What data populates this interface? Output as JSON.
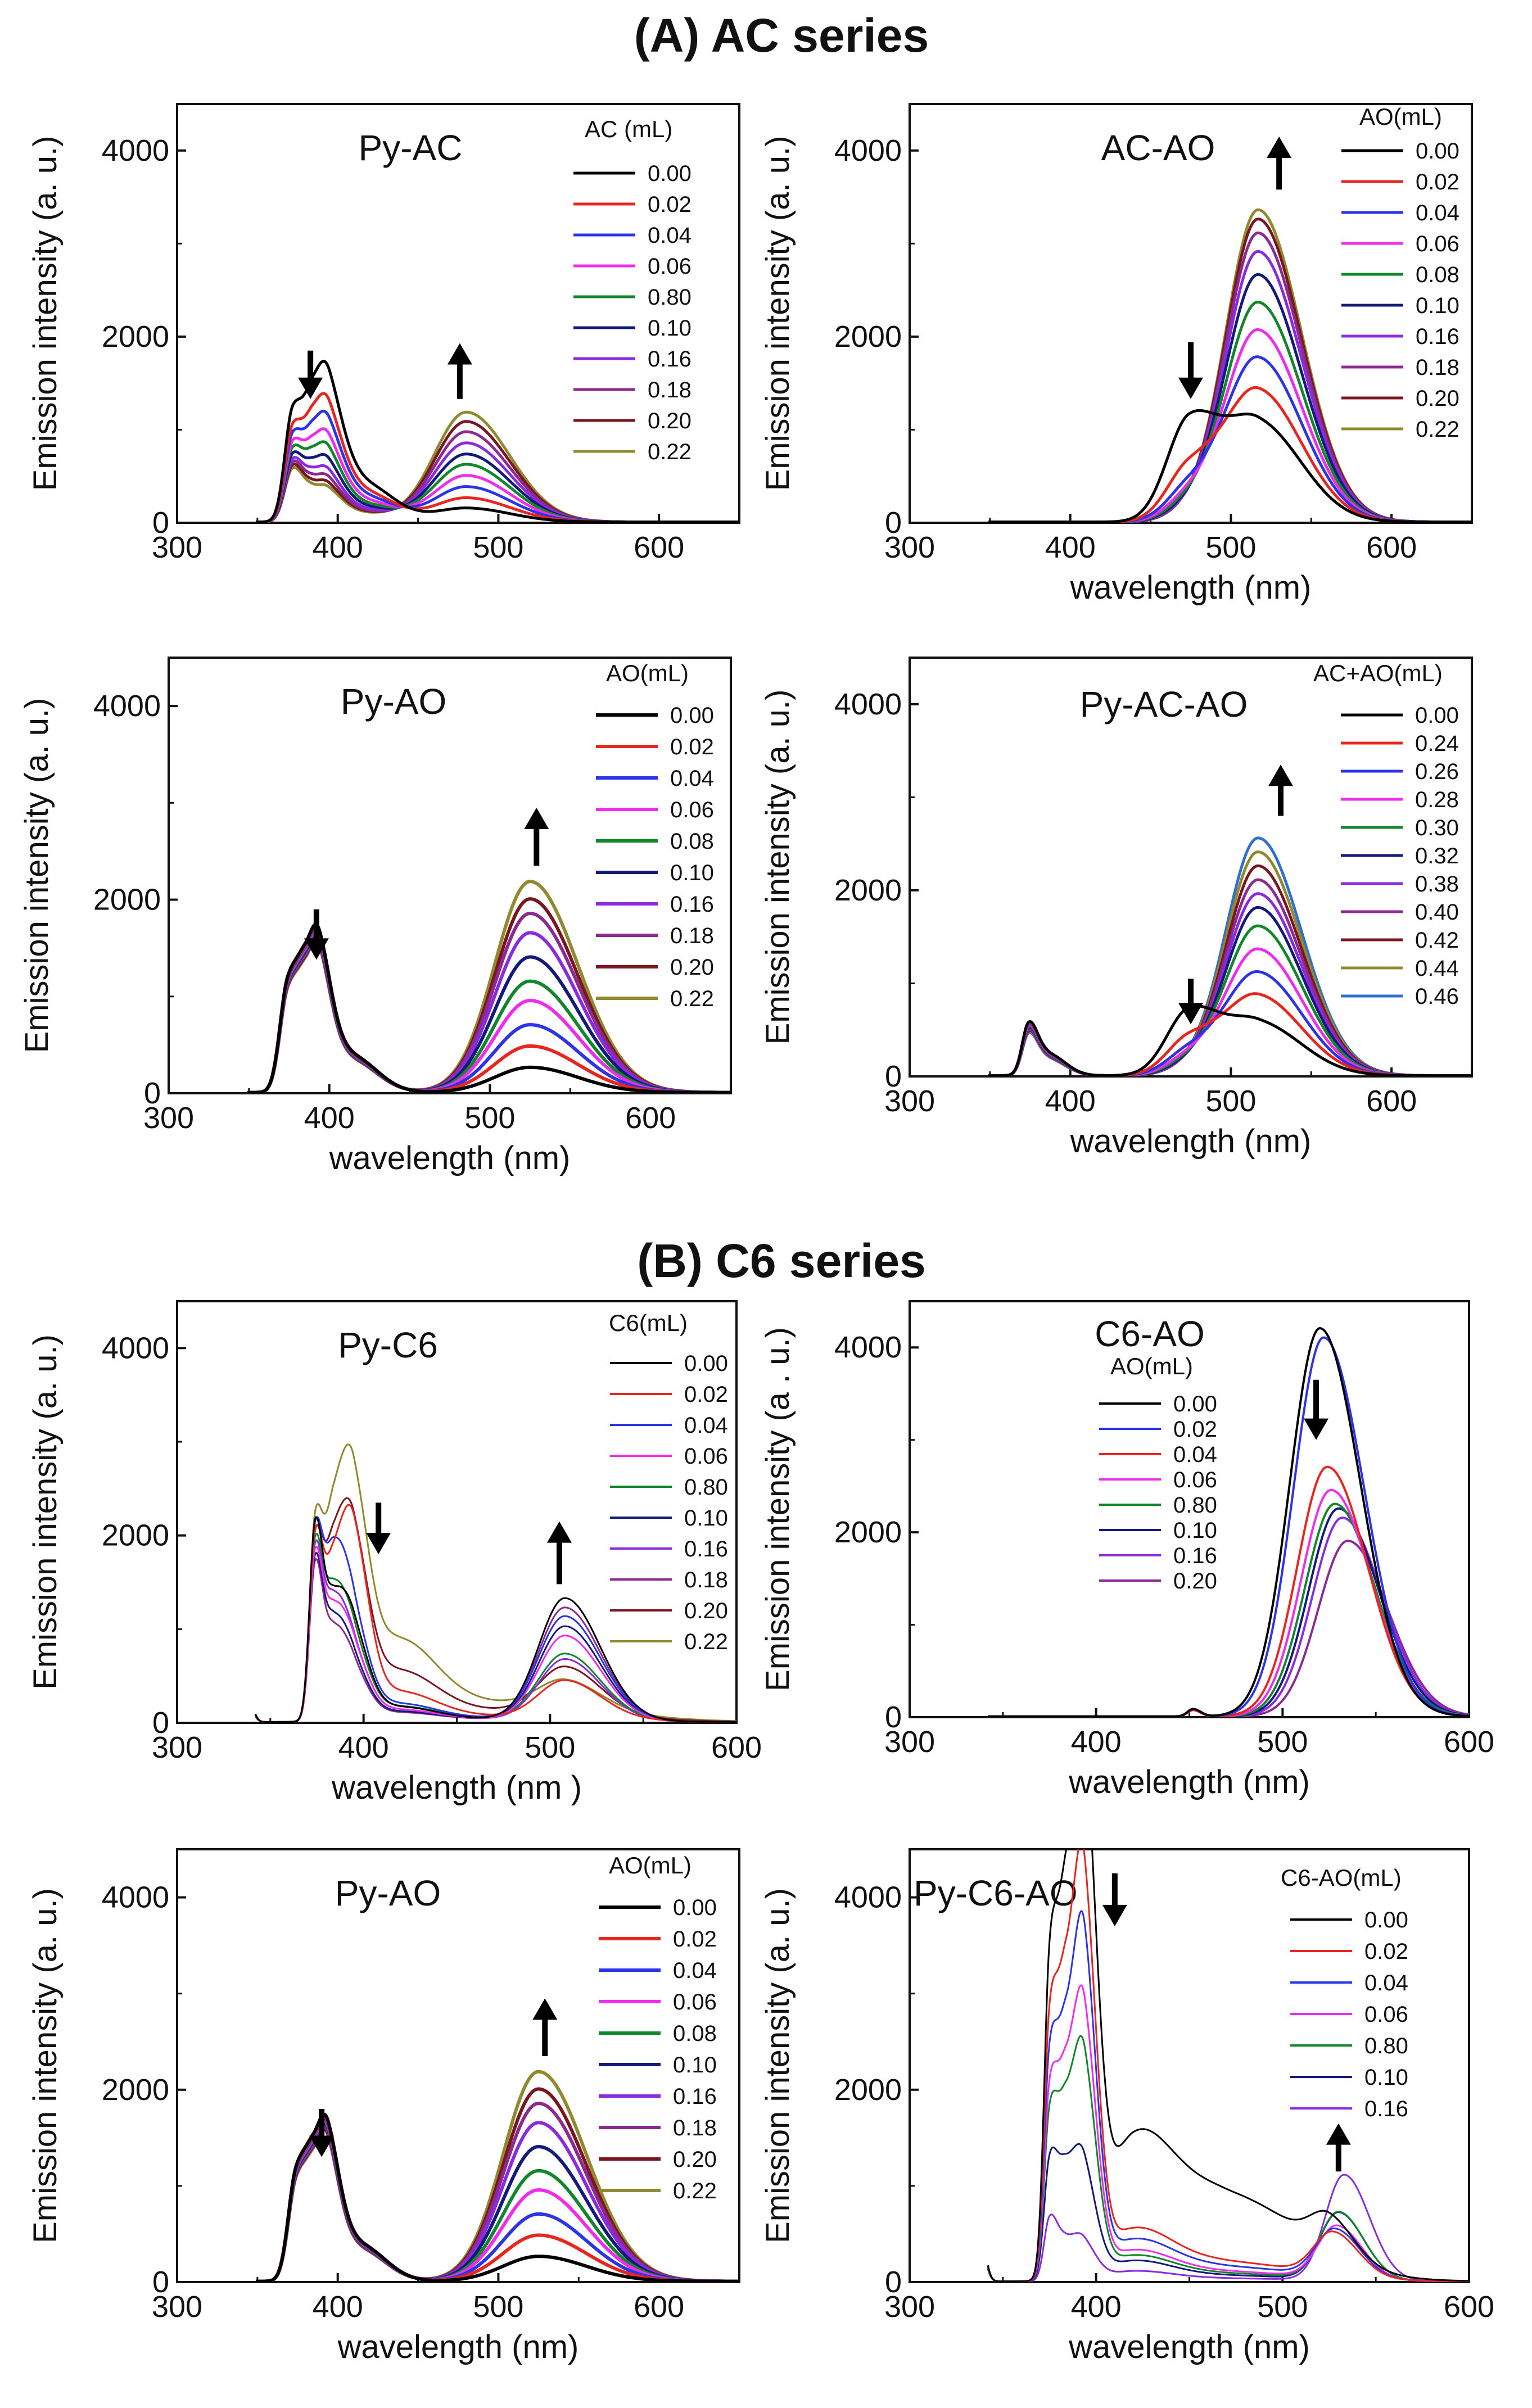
{
  "figure": {
    "section_a_title": "(A) AC series",
    "section_b_title": "(B) C6 series"
  },
  "chart_data": [
    {
      "id": "py-ac",
      "type": "line",
      "title": "Py-AC",
      "xlabel": "",
      "ylabel": "Emission intensity (a. u.)",
      "xlim": [
        300,
        650
      ],
      "ylim": [
        0,
        4500
      ],
      "xticks": [
        300,
        400,
        500,
        600
      ],
      "yticks": [
        0,
        2000,
        4000
      ],
      "legend_title": "AC (mL)",
      "legend_labels": [
        "0.00",
        "0.02",
        "0.04",
        "0.06",
        "0.80",
        "0.10",
        "0.16",
        "0.18",
        "0.20",
        "0.22"
      ],
      "colors": [
        "#000000",
        "#e8261f",
        "#2b34e6",
        "#ee2bee",
        "#12862a",
        "#141a7a",
        "#8a2be2",
        "#8c2a91",
        "#7a1620",
        "#8f8a2e"
      ],
      "line_width": 5,
      "peaks": [
        {
          "center": 372,
          "width": 5,
          "heights": [
            1150,
            980,
            900,
            820,
            760,
            700,
            650,
            620,
            590,
            560
          ]
        },
        {
          "center": 385,
          "width": 6,
          "heights": [
            1000,
            800,
            690,
            580,
            500,
            420,
            350,
            300,
            260,
            230
          ]
        },
        {
          "center": 395,
          "width": 7,
          "heights": [
            1000,
            800,
            690,
            580,
            500,
            420,
            350,
            300,
            260,
            230
          ]
        },
        {
          "center": 415,
          "width": 14,
          "heights": [
            420,
            330,
            280,
            230,
            190,
            160,
            130,
            110,
            100,
            90
          ]
        },
        {
          "center": 480,
          "width": 20,
          "heights": [
            150,
            260,
            380,
            500,
            620,
            730,
            850,
            970,
            1080,
            1180
          ]
        }
      ],
      "arrows": [
        {
          "x": 383,
          "y1": 1850,
          "y2": 1330,
          "dir": "down"
        },
        {
          "x": 476,
          "y1": 1330,
          "y2": 1930,
          "dir": "up"
        }
      ]
    },
    {
      "id": "ac-ao",
      "type": "line",
      "title": "AC-AO",
      "xlabel": "wavelength (nm)",
      "ylabel": "Emission intensity (a. u.)",
      "xlim": [
        300,
        650
      ],
      "ylim": [
        0,
        4500
      ],
      "xticks": [
        300,
        400,
        500,
        600
      ],
      "yticks": [
        0,
        2000,
        4000
      ],
      "legend_title": "AO(mL)",
      "legend_labels": [
        "0.00",
        "0.02",
        "0.04",
        "0.06",
        "0.08",
        "0.10",
        "0.16",
        "0.18",
        "0.20",
        "0.22"
      ],
      "colors": [
        "#000000",
        "#e8261f",
        "#2b34e6",
        "#ee2bee",
        "#12862a",
        "#141a7a",
        "#8a2be2",
        "#8c2a91",
        "#7a1620",
        "#8f8a2e"
      ],
      "line_width": 5,
      "peaks": [
        {
          "center": 474,
          "width": 14,
          "heights": [
            1060,
            550,
            330,
            230,
            170,
            130,
            100,
            90,
            80,
            70
          ]
        },
        {
          "center": 517,
          "width": 20,
          "heights": [
            1050,
            1400,
            1750,
            2050,
            2350,
            2650,
            2900,
            3100,
            3250,
            3350
          ]
        }
      ],
      "arrows": [
        {
          "x": 475,
          "y1": 1940,
          "y2": 1330,
          "dir": "down"
        },
        {
          "x": 530,
          "y1": 3580,
          "y2": 4150,
          "dir": "up"
        }
      ]
    },
    {
      "id": "py-ao-a",
      "type": "line",
      "title": "Py-AO",
      "xlabel": "wavelength (nm)",
      "ylabel": "Emission intensity (a. u.)",
      "xlim": [
        300,
        650
      ],
      "ylim": [
        0,
        4500
      ],
      "xticks": [
        300,
        400,
        500,
        600
      ],
      "yticks": [
        0,
        2000,
        4000
      ],
      "legend_title": "AO(mL)",
      "legend_labels": [
        "0.00",
        "0.02",
        "0.04",
        "0.06",
        "0.08",
        "0.10",
        "0.16",
        "0.18",
        "0.20",
        "0.22"
      ],
      "colors": [
        "#000000",
        "#e8261f",
        "#2b34e6",
        "#ee2bee",
        "#12862a",
        "#141a7a",
        "#8a2be2",
        "#8c2a91",
        "#7a1620",
        "#8f8a2e"
      ],
      "line_width": 6,
      "peaks": [
        {
          "center": 374,
          "width": 5,
          "heights": [
            1020,
            1010,
            1000,
            990,
            980,
            970,
            960,
            950,
            940,
            930
          ]
        },
        {
          "center": 385,
          "width": 6,
          "heights": [
            900,
            890,
            880,
            870,
            860,
            850,
            840,
            830,
            820,
            810
          ]
        },
        {
          "center": 394,
          "width": 6,
          "heights": [
            1060,
            1050,
            1040,
            1030,
            1020,
            1010,
            1000,
            990,
            980,
            970
          ]
        },
        {
          "center": 413,
          "width": 12,
          "heights": [
            380,
            375,
            370,
            365,
            360,
            355,
            350,
            345,
            340,
            335
          ]
        },
        {
          "center": 525,
          "width": 22,
          "heights": [
            260,
            480,
            700,
            950,
            1150,
            1400,
            1650,
            1850,
            2000,
            2180
          ]
        }
      ],
      "arrows": [
        {
          "x": 392,
          "y1": 1900,
          "y2": 1380,
          "dir": "down"
        },
        {
          "x": 529,
          "y1": 2350,
          "y2": 2950,
          "dir": "up"
        }
      ]
    },
    {
      "id": "py-ac-ao",
      "type": "line",
      "title": "Py-AC-AO",
      "xlabel": "wavelength (nm)",
      "ylabel": "Emission intensity (a. u.)",
      "xlim": [
        300,
        650
      ],
      "ylim": [
        0,
        4500
      ],
      "xticks": [
        300,
        400,
        500,
        600
      ],
      "yticks": [
        0,
        2000,
        4000
      ],
      "legend_title": "AC+AO(mL)",
      "legend_labels": [
        "0.00",
        "0.24",
        "0.26",
        "0.28",
        "0.30",
        "0.32",
        "0.38",
        "0.40",
        "0.42",
        "0.44",
        "0.46"
      ],
      "colors": [
        "#000000",
        "#e8261f",
        "#2b34e6",
        "#ee2bee",
        "#12862a",
        "#141a7a",
        "#8a2be2",
        "#8c2a91",
        "#7a1620",
        "#8f8a2e",
        "#2f6fd0"
      ],
      "line_width": 5,
      "peaks": [
        {
          "center": 374,
          "width": 4,
          "heights": [
            500,
            490,
            480,
            470,
            460,
            450,
            440,
            430,
            420,
            410,
            400
          ]
        },
        {
          "center": 386,
          "width": 8,
          "heights": [
            230,
            225,
            220,
            215,
            210,
            205,
            200,
            195,
            190,
            185,
            180
          ]
        },
        {
          "center": 474,
          "width": 14,
          "heights": [
            680,
            380,
            240,
            170,
            130,
            100,
            85,
            75,
            65,
            60,
            55
          ]
        },
        {
          "center": 517,
          "width": 20,
          "heights": [
            560,
            850,
            1100,
            1350,
            1600,
            1800,
            1950,
            2100,
            2250,
            2400,
            2550
          ]
        }
      ],
      "arrows": [
        {
          "x": 475,
          "y1": 1050,
          "y2": 560,
          "dir": "down"
        },
        {
          "x": 531,
          "y1": 2800,
          "y2": 3350,
          "dir": "up"
        }
      ]
    },
    {
      "id": "py-c6",
      "type": "line",
      "title": "Py-C6",
      "xlabel": "wavelength (nm )",
      "ylabel": "Emission  intensity  (a. u.)",
      "xlim": [
        300,
        600
      ],
      "ylim": [
        0,
        4500
      ],
      "xticks": [
        300,
        400,
        500,
        600
      ],
      "yticks": [
        0,
        2000,
        4000
      ],
      "legend_title": "C6(mL)",
      "legend_labels": [
        "0.00",
        "0.02",
        "0.04",
        "0.06",
        "0.80",
        "0.10",
        "0.16",
        "0.18",
        "0.20",
        "0.22"
      ],
      "colors": [
        "#000000",
        "#e8261f",
        "#2b34e6",
        "#ee2bee",
        "#12862a",
        "#141a7a",
        "#8a2be2",
        "#8c2a91",
        "#7a1620",
        "#8f8a2e"
      ],
      "line_width": 3,
      "peaks": [
        {
          "center": 338,
          "width": 2,
          "heights": [
            260,
            250,
            240,
            230,
            220,
            210,
            200,
            190,
            180,
            170
          ]
        },
        {
          "center": 374,
          "width": 3,
          "heights": [
            2000,
            1850,
            1900,
            1700,
            1800,
            1650,
            1750,
            1600,
            1800,
            1950
          ]
        },
        {
          "center": 384,
          "width": 5,
          "heights": [
            1200,
            1500,
            1700,
            1100,
            1300,
            1000,
            1200,
            900,
            1700,
            2000
          ]
        },
        {
          "center": 395,
          "width": 6,
          "heights": [
            800,
            1700,
            900,
            600,
            700,
            500,
            600,
            450,
            1600,
            2000
          ]
        },
        {
          "center": 418,
          "width": 15,
          "heights": [
            150,
            300,
            180,
            120,
            150,
            100,
            120,
            90,
            500,
            800
          ]
        },
        {
          "center": 470,
          "width": 40,
          "heights": [
            30,
            60,
            40,
            30,
            40,
            30,
            30,
            30,
            120,
            200
          ]
        },
        {
          "center": 508,
          "width": 14,
          "heights": [
            1300,
            400,
            1100,
            900,
            700,
            1000,
            650,
            1200,
            500,
            300
          ]
        }
      ],
      "arrows": [
        {
          "x": 408,
          "y1": 2350,
          "y2": 1800,
          "dir": "down"
        },
        {
          "x": 505,
          "y1": 1480,
          "y2": 2150,
          "dir": "up"
        }
      ]
    },
    {
      "id": "c6-ao",
      "type": "line",
      "title": "C6-AO",
      "xlabel": "wavelength (nm)",
      "ylabel": "Emission intensity (a . u.)",
      "xlim": [
        300,
        600
      ],
      "ylim": [
        0,
        4500
      ],
      "xticks": [
        300,
        400,
        500,
        600
      ],
      "yticks": [
        0,
        2000,
        4000
      ],
      "legend_title": "AO(mL)",
      "legend_labels": [
        "0.00",
        "0.02",
        "0.04",
        "0.06",
        "0.80",
        "0.10",
        "0.16",
        "0.20"
      ],
      "colors": [
        "#000000",
        "#2b34e6",
        "#e8261f",
        "#ee2bee",
        "#12862a",
        "#141a7a",
        "#8a2be2",
        "#8c2a91"
      ],
      "line_width": 4,
      "peaks": [
        {
          "center": 452,
          "width": 3,
          "heights": [
            80,
            80,
            70,
            70,
            70,
            70,
            70,
            70
          ]
        },
        {
          "center": 518,
          "width": 16,
          "centers": [
            520,
            522,
            524,
            526,
            528,
            530,
            532,
            535
          ],
          "heights": [
            4200,
            4100,
            2700,
            2450,
            2300,
            2250,
            2150,
            1900
          ]
        }
      ],
      "arrows": [
        {
          "x": 518,
          "y1": 3650,
          "y2": 3000,
          "dir": "down"
        }
      ]
    },
    {
      "id": "py-ao-b",
      "type": "line",
      "title": "Py-AO",
      "xlabel": "wavelength (nm)",
      "ylabel": "Emission intensity (a. u.)",
      "xlim": [
        300,
        650
      ],
      "ylim": [
        0,
        4500
      ],
      "xticks": [
        300,
        400,
        500,
        600
      ],
      "yticks": [
        0,
        2000,
        4000
      ],
      "legend_title": "AO(mL)",
      "legend_labels": [
        "0.00",
        "0.02",
        "0.04",
        "0.06",
        "0.08",
        "0.10",
        "0.16",
        "0.18",
        "0.20",
        "0.22"
      ],
      "colors": [
        "#000000",
        "#e8261f",
        "#2b34e6",
        "#ee2bee",
        "#12862a",
        "#141a7a",
        "#8a2be2",
        "#8c2a91",
        "#7a1620",
        "#8f8a2e"
      ],
      "line_width": 6,
      "peaks": [
        {
          "center": 374,
          "width": 5,
          "heights": [
            1020,
            1010,
            1000,
            990,
            980,
            970,
            960,
            950,
            940,
            930
          ]
        },
        {
          "center": 385,
          "width": 6,
          "heights": [
            900,
            890,
            880,
            870,
            860,
            850,
            840,
            830,
            820,
            810
          ]
        },
        {
          "center": 394,
          "width": 6,
          "heights": [
            1060,
            1050,
            1040,
            1030,
            1020,
            1010,
            1000,
            990,
            980,
            970
          ]
        },
        {
          "center": 413,
          "width": 12,
          "heights": [
            380,
            375,
            370,
            365,
            360,
            355,
            350,
            345,
            340,
            335
          ]
        },
        {
          "center": 525,
          "width": 22,
          "heights": [
            260,
            480,
            700,
            950,
            1150,
            1400,
            1650,
            1850,
            2000,
            2180
          ]
        }
      ],
      "arrows": [
        {
          "x": 390,
          "y1": 1800,
          "y2": 1300,
          "dir": "down"
        },
        {
          "x": 529,
          "y1": 2350,
          "y2": 2950,
          "dir": "up"
        }
      ]
    },
    {
      "id": "py-c6-ao",
      "type": "line",
      "title": "Py-C6-AO",
      "xlabel": "wavelength (nm)",
      "ylabel": "Emission intensity (a. u.)",
      "xlim": [
        300,
        600
      ],
      "ylim": [
        0,
        4500
      ],
      "xticks": [
        300,
        400,
        500,
        600
      ],
      "yticks": [
        0,
        2000,
        4000
      ],
      "legend_title": "C6-AO(mL)",
      "legend_labels": [
        "0.00",
        "0.02",
        "0.04",
        "0.06",
        "0.80",
        "0.10",
        "0.16"
      ],
      "colors": [
        "#000000",
        "#e8261f",
        "#2b34e6",
        "#ee2bee",
        "#12862a",
        "#141a7a",
        "#8a2be2"
      ],
      "line_width": 3,
      "peaks": [
        {
          "center": 338,
          "width": 2,
          "heights": [
            500,
            480,
            460,
            440,
            420,
            400,
            380
          ]
        },
        {
          "center": 375,
          "width": 3,
          "heights": [
            2800,
            2300,
            2000,
            1700,
            1500,
            1100,
            600
          ]
        },
        {
          "center": 384,
          "width": 5,
          "heights": [
            3600,
            2900,
            2400,
            2000,
            1700,
            1100,
            400
          ]
        },
        {
          "center": 394,
          "width": 5,
          "heights": [
            4200,
            3300,
            2800,
            2200,
            1800,
            900,
            300
          ]
        },
        {
          "center": 420,
          "width": 15,
          "heights": [
            1300,
            500,
            400,
            300,
            250,
            200,
            100
          ]
        },
        {
          "center": 468,
          "width": 30,
          "heights": [
            900,
            200,
            150,
            100,
            80,
            60,
            30
          ]
        },
        {
          "center": 525,
          "width": 10,
          "centers": [
            525,
            527,
            528,
            529,
            530,
            530,
            533
          ],
          "heights": [
            380,
            450,
            500,
            550,
            700,
            700,
            1100
          ]
        }
      ],
      "arrows": [
        {
          "x": 410,
          "y1": 4250,
          "y2": 3700,
          "dir": "down"
        },
        {
          "x": 530,
          "y1": 1150,
          "y2": 1650,
          "dir": "up"
        }
      ]
    }
  ]
}
